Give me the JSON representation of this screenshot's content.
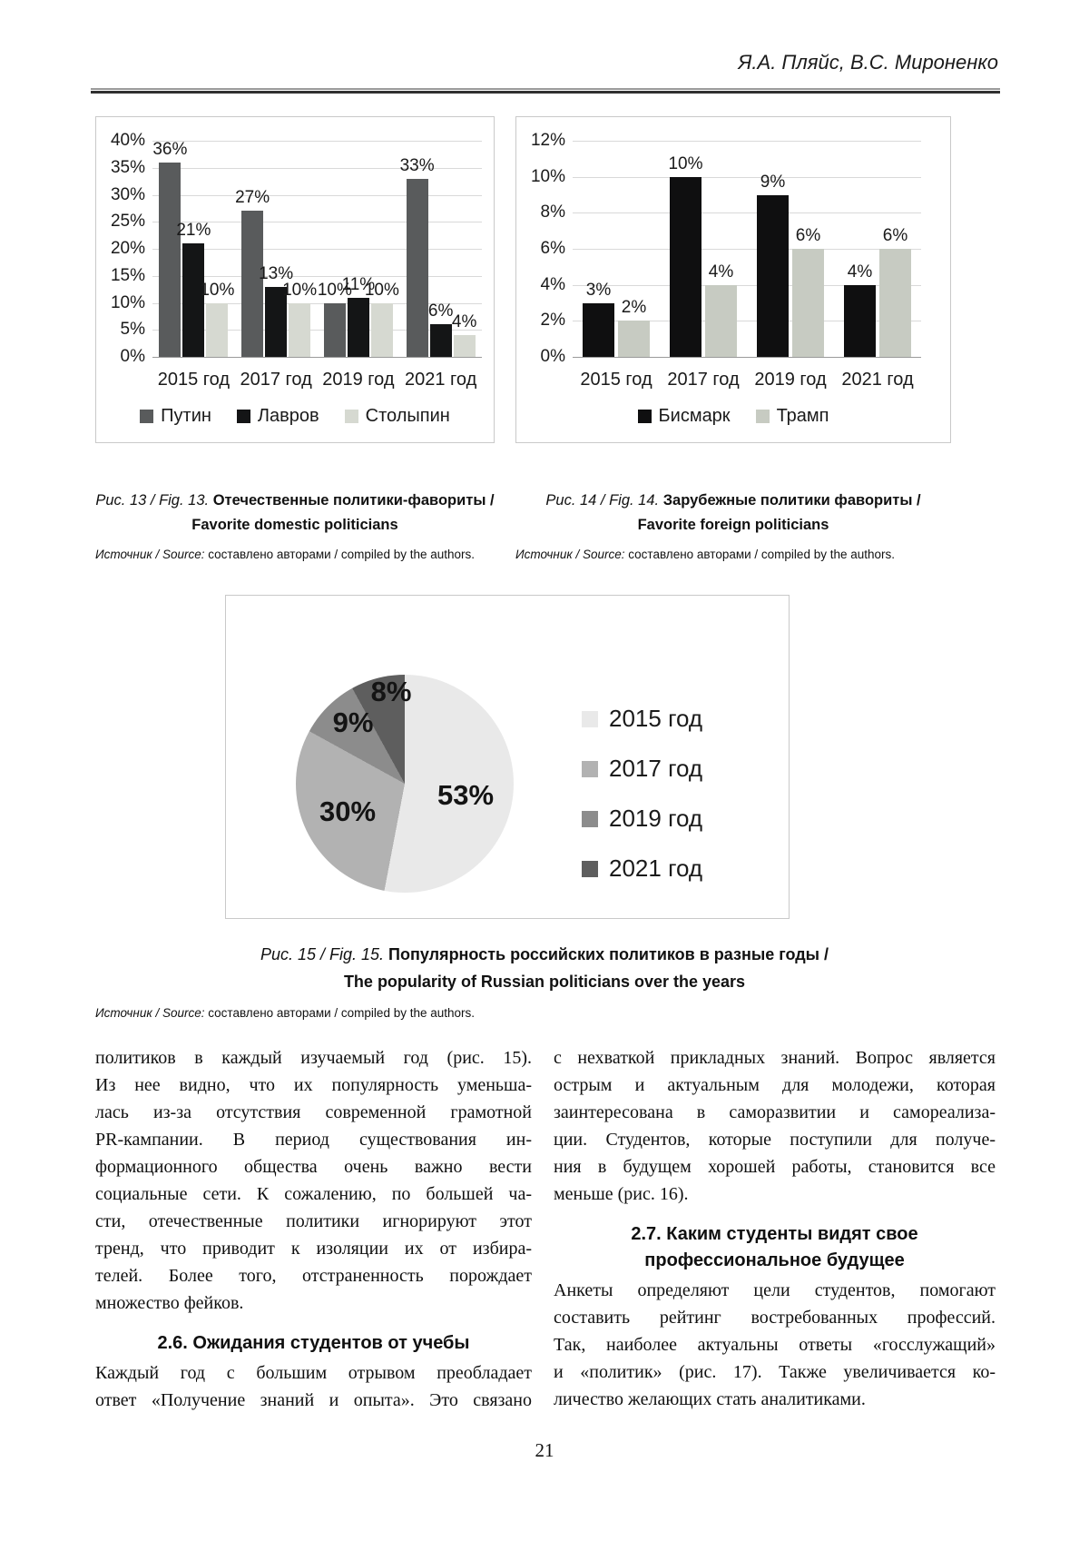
{
  "header": {
    "authors": "Я.А. Пляйс, В.С. Мироненко"
  },
  "chart_data": [
    {
      "id": "fig13",
      "type": "bar",
      "title": "Отечественные политики-фавориты / Favorite domestic politicians",
      "categories": [
        "2015 год",
        "2017 год",
        "2019 год",
        "2021 год"
      ],
      "series": [
        {
          "name": "Путин",
          "color": "#595b5c",
          "values": [
            36,
            27,
            10,
            33
          ]
        },
        {
          "name": "Лавров",
          "color": "#141516",
          "values": [
            21,
            13,
            11,
            6
          ]
        },
        {
          "name": "Столыпин",
          "color": "#d6d9d1",
          "values": [
            10,
            10,
            10,
            4
          ]
        }
      ],
      "ylim": [
        0,
        40
      ],
      "ytick_step": 5,
      "ytick_labels": [
        "0%",
        "5%",
        "10%",
        "15%",
        "20%",
        "25%",
        "30%",
        "35%",
        "40%"
      ],
      "data_label_suffix": "%",
      "grid": true,
      "legend_position": "bottom"
    },
    {
      "id": "fig14",
      "type": "bar",
      "title": "Зарубежные политики фавориты / Favorite foreign politicians",
      "categories": [
        "2015 год",
        "2017 год",
        "2019 год",
        "2021 год"
      ],
      "series": [
        {
          "name": "Бисмарк",
          "color": "#0f0f10",
          "values": [
            3,
            10,
            9,
            4
          ]
        },
        {
          "name": "Трамп",
          "color": "#c7cbc2",
          "values": [
            2,
            4,
            6,
            6
          ]
        }
      ],
      "ylim": [
        0,
        12
      ],
      "ytick_step": 2,
      "ytick_labels": [
        "0%",
        "2%",
        "4%",
        "6%",
        "8%",
        "10%",
        "12%"
      ],
      "data_label_suffix": "%",
      "grid": true,
      "legend_position": "bottom"
    },
    {
      "id": "fig15",
      "type": "pie",
      "title": "Популярность российских политиков в разные годы / The popularity of Russian politicians over the years",
      "labels": [
        "2015 год",
        "2017 год",
        "2019 год",
        "2021 год"
      ],
      "values": [
        53,
        30,
        9,
        8
      ],
      "colors": [
        "#e9e9e9",
        "#b2b2b2",
        "#8c8c8c",
        "#5e5e5e"
      ],
      "data_label_suffix": "%",
      "legend_position": "right"
    }
  ],
  "figures": {
    "fig13": {
      "prefix": "Рис. 13 / Fig. 13.",
      "title_ru": "Отечественные политики-фавориты /",
      "title_en": "Favorite domestic politicians",
      "source_label": "Источник / Source:",
      "source_text": "составлено авторами / compiled by the authors."
    },
    "fig14": {
      "prefix": "Рис. 14 / Fig. 14.",
      "title_ru": "Зарубежные политики фавориты /",
      "title_en": "Favorite foreign politicians",
      "source_label": "Источник / Source:",
      "source_text": "составлено авторами / compiled by the authors."
    },
    "fig15": {
      "prefix": "Рис. 15 / Fig. 15.",
      "title_ru": "Популярность российских политиков в разные годы /",
      "title_en": "The popularity of Russian politicians over the years",
      "source_label": "Источник / Source:",
      "source_text": "составлено авторами / compiled by the authors."
    }
  },
  "body": {
    "left_column": {
      "blocks": [
        {
          "type": "p",
          "justify_last": false,
          "lines": [
            "политиков в каждый изучаемый год (рис. 15).",
            "Из нее видно, что их популярность уменьша-",
            "лась из-за отсутствия современной грамотной",
            "PR-кампании. В период существования ин-",
            "формационного общества очень важно вести",
            "социальные сети. К сожалению, по большей ча-",
            "сти, отечественные политики игнорируют этот",
            "тренд, что приводит к изоляции их от избира-",
            "телей. Более того, отстраненность порождает",
            "множество фейков."
          ]
        },
        {
          "type": "h",
          "lines": [
            "2.6. Ожидания студентов от учебы"
          ]
        },
        {
          "type": "p",
          "justify_last": true,
          "lines": [
            "Каждый год с большим отрывом преобладает",
            "ответ «Получение знаний и опыта». Это связано"
          ]
        }
      ]
    },
    "right_column": {
      "blocks": [
        {
          "type": "p",
          "justify_last": false,
          "lines": [
            "с нехваткой прикладных знаний. Вопрос является",
            "острым и актуальным для молодежи, которая",
            "заинтересована в саморазвитии и самореализа-",
            "ции. Студентов, которые поступили для получе-",
            "ния в будущем хорошей работы, становится все",
            "меньше (рис. 16)."
          ]
        },
        {
          "type": "h",
          "lines": [
            "2.7. Каким студенты видят свое",
            "профессиональное будущее"
          ]
        },
        {
          "type": "p",
          "justify_last": false,
          "lines": [
            "Анкеты определяют цели студентов, помогают",
            "составить рейтинг востребованных профессий.",
            "Так, наиболее актуальны ответы «госслужащий»",
            "и «политик» (рис. 17). Также увеличивается ко-",
            "личество желающих стать аналитиками."
          ]
        }
      ]
    }
  },
  "page_number": "21"
}
